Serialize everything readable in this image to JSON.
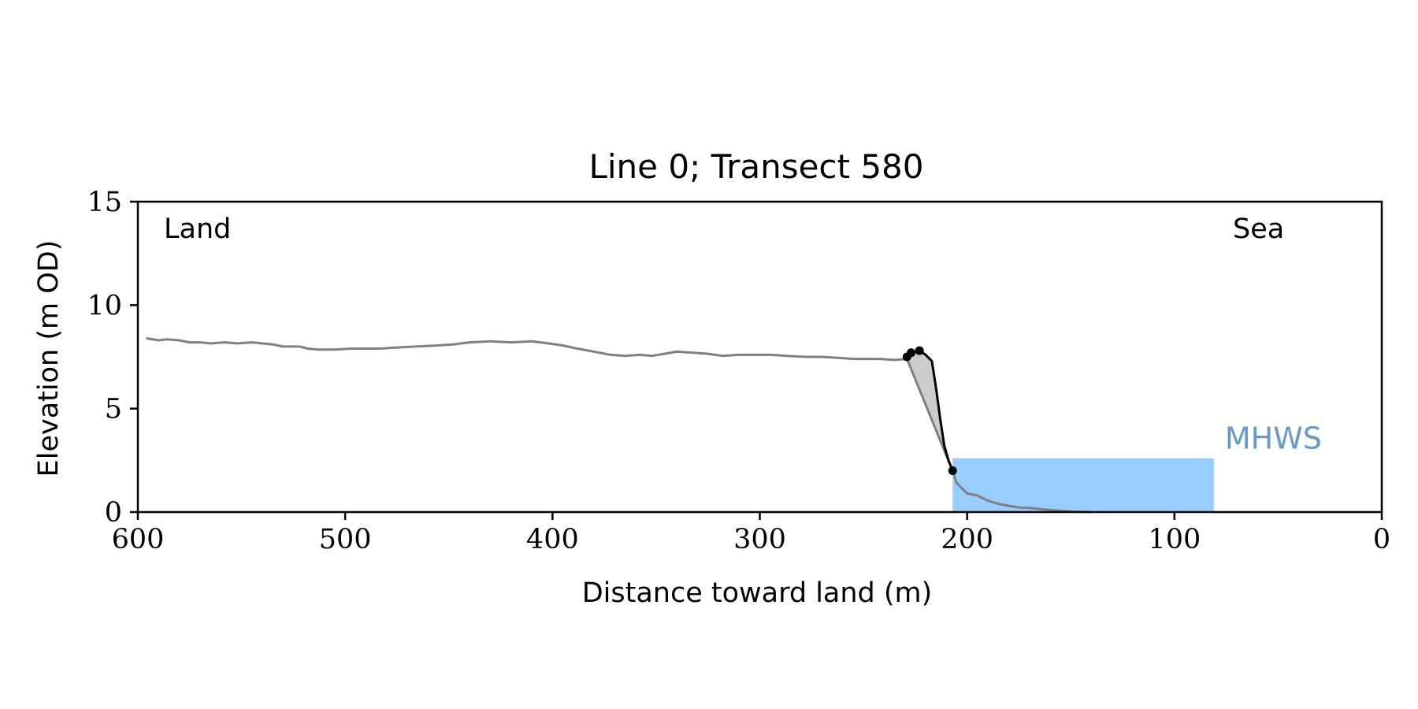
{
  "chart_data": {
    "type": "line",
    "title": "Line 0; Transect 580",
    "xlabel": "Distance toward land (m)",
    "ylabel": "Elevation (m OD)",
    "xlim": [
      600,
      0
    ],
    "ylim": [
      0,
      15
    ],
    "x_ticks": [
      600,
      500,
      400,
      300,
      200,
      100,
      0
    ],
    "y_ticks": [
      0,
      5,
      10,
      15
    ],
    "grid": false,
    "annotations": {
      "land": "Land",
      "sea": "Sea"
    },
    "mhws": {
      "label": "MHWS",
      "value": 2.6,
      "x_from": 207,
      "x_to": 81,
      "fill_color": "#99ccff",
      "label_color": "#6699cc"
    },
    "series": [
      {
        "role": "profile",
        "color": "#808080",
        "points": [
          [
            596,
            8.4
          ],
          [
            590,
            8.3
          ],
          [
            586,
            8.35
          ],
          [
            580,
            8.3
          ],
          [
            575,
            8.2
          ],
          [
            570,
            8.2
          ],
          [
            565,
            8.15
          ],
          [
            558,
            8.2
          ],
          [
            552,
            8.15
          ],
          [
            545,
            8.2
          ],
          [
            540,
            8.15
          ],
          [
            535,
            8.1
          ],
          [
            530,
            8.0
          ],
          [
            522,
            8.0
          ],
          [
            518,
            7.9
          ],
          [
            513,
            7.85
          ],
          [
            505,
            7.85
          ],
          [
            497,
            7.9
          ],
          [
            490,
            7.9
          ],
          [
            483,
            7.9
          ],
          [
            476,
            7.95
          ],
          [
            466,
            8.0
          ],
          [
            456,
            8.05
          ],
          [
            448,
            8.1
          ],
          [
            440,
            8.2
          ],
          [
            430,
            8.25
          ],
          [
            420,
            8.2
          ],
          [
            410,
            8.25
          ],
          [
            402,
            8.15
          ],
          [
            395,
            8.05
          ],
          [
            388,
            7.9
          ],
          [
            380,
            7.75
          ],
          [
            372,
            7.6
          ],
          [
            365,
            7.55
          ],
          [
            358,
            7.6
          ],
          [
            352,
            7.55
          ],
          [
            346,
            7.65
          ],
          [
            340,
            7.75
          ],
          [
            332,
            7.7
          ],
          [
            325,
            7.65
          ],
          [
            318,
            7.55
          ],
          [
            310,
            7.6
          ],
          [
            302,
            7.6
          ],
          [
            295,
            7.6
          ],
          [
            287,
            7.55
          ],
          [
            278,
            7.5
          ],
          [
            270,
            7.5
          ],
          [
            262,
            7.45
          ],
          [
            255,
            7.4
          ],
          [
            248,
            7.4
          ],
          [
            242,
            7.4
          ],
          [
            235,
            7.35
          ],
          [
            229,
            7.4
          ],
          [
            207,
            2.0
          ],
          [
            205,
            1.4
          ],
          [
            200,
            0.9
          ],
          [
            195,
            0.8
          ],
          [
            190,
            0.55
          ],
          [
            185,
            0.4
          ],
          [
            180,
            0.3
          ],
          [
            175,
            0.22
          ],
          [
            170,
            0.2
          ],
          [
            165,
            0.15
          ],
          [
            160,
            0.1
          ],
          [
            150,
            0.03
          ],
          [
            140,
            0.0
          ]
        ]
      },
      {
        "role": "cliff",
        "color": "#000000",
        "points": [
          [
            229,
            7.5
          ],
          [
            227,
            7.7
          ],
          [
            225,
            7.75
          ],
          [
            223,
            7.8
          ],
          [
            220,
            7.6
          ],
          [
            217,
            7.3
          ],
          [
            215,
            6.0
          ],
          [
            213,
            4.5
          ],
          [
            211,
            3.2
          ],
          [
            209,
            2.5
          ],
          [
            207,
            2.0
          ]
        ]
      }
    ],
    "cliff_fill_color": "#cccccc",
    "markers": [
      {
        "name": "cliff-top-marker-1",
        "x": 229,
        "y": 7.5
      },
      {
        "name": "cliff-top-marker-2",
        "x": 227,
        "y": 7.7
      },
      {
        "name": "cliff-top-marker-3",
        "x": 223,
        "y": 7.8
      },
      {
        "name": "cliff-toe-marker",
        "x": 207,
        "y": 2.0
      }
    ]
  }
}
